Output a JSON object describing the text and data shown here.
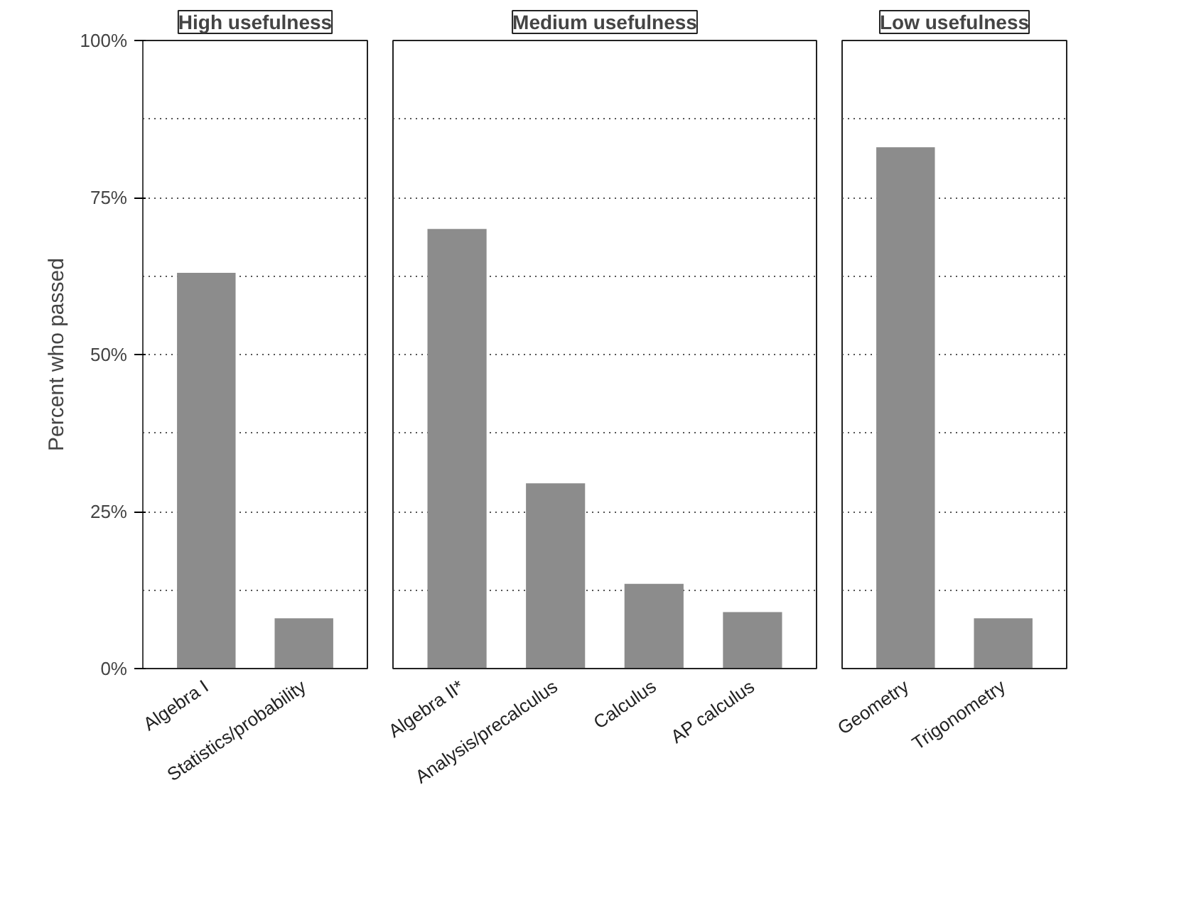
{
  "chart_data": [
    {
      "type": "bar",
      "title": "High usefulness",
      "ylabel": "Percent who passed",
      "categories": [
        "Algebra I",
        "Statistics/probability"
      ],
      "values": [
        63,
        8
      ],
      "color": "#8c8c8c",
      "ylim": [
        0,
        100
      ],
      "yticks": [
        {
          "value": 0,
          "label": "0%"
        },
        {
          "value": 12.5,
          "label": null
        },
        {
          "value": 25,
          "label": "25%"
        },
        {
          "value": 37.5,
          "label": null
        },
        {
          "value": 50,
          "label": "50%"
        },
        {
          "value": 62.5,
          "label": null
        },
        {
          "value": 75,
          "label": "75%"
        },
        {
          "value": 87.5,
          "label": null
        },
        {
          "value": 100,
          "label": "100%"
        }
      ],
      "grid": "y"
    },
    {
      "type": "bar",
      "title": "Medium usefulness",
      "categories": [
        "Algebra II*",
        "Analysis/precalculus",
        "Calculus",
        "AP calculus"
      ],
      "values": [
        70,
        29.5,
        13.5,
        9
      ],
      "color": "#8c8c8c",
      "ylim": [
        0,
        100
      ],
      "yticks": [
        0,
        12.5,
        25,
        37.5,
        50,
        62.5,
        75,
        87.5,
        100
      ],
      "grid": "y",
      "tick_labels": "x"
    },
    {
      "type": "bar",
      "title": "Low usefulness",
      "categories": [
        "Geometry",
        "Trigonometry"
      ],
      "values": [
        83,
        8
      ],
      "color": "#8c8c8c",
      "ylim": [
        0,
        100
      ],
      "yticks": [
        0,
        12.5,
        25,
        37.5,
        50,
        62.5,
        75,
        87.5,
        100
      ],
      "grid": "y",
      "tick_labels": "x"
    }
  ]
}
